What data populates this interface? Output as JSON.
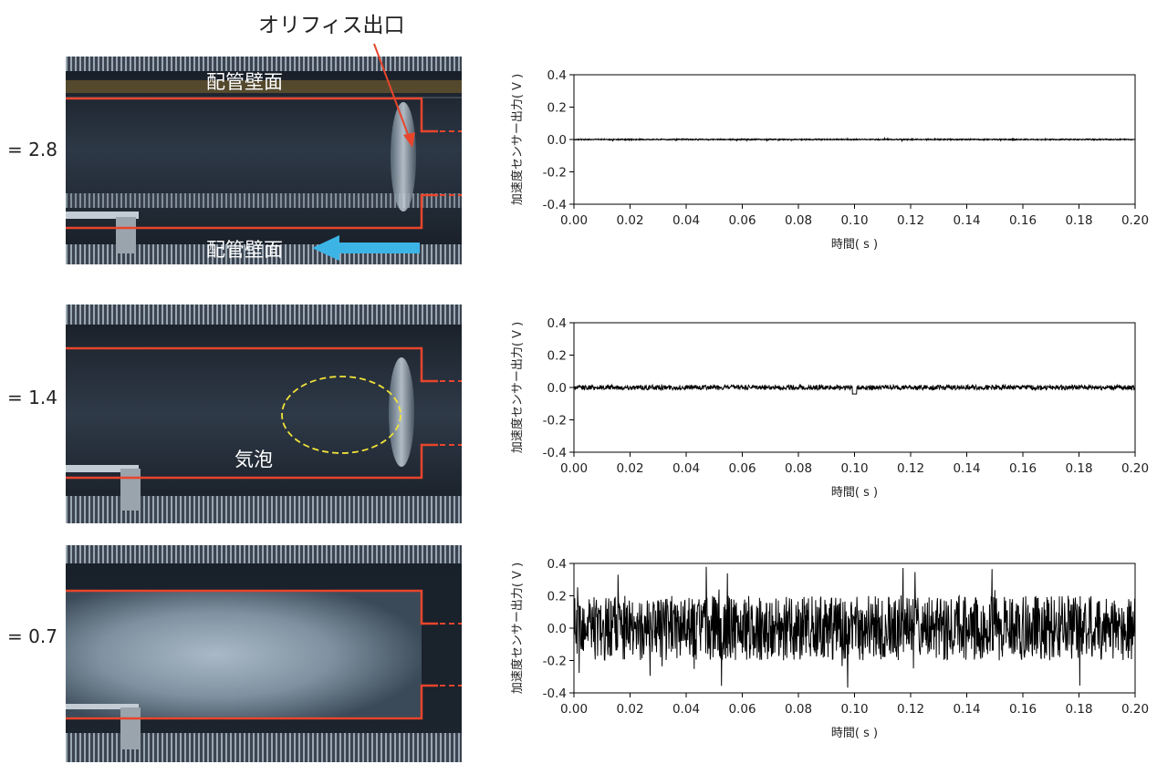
{
  "labels": {
    "orifice_exit": "オリフィス出口",
    "pipe_wall": "配管壁面",
    "bubble": "気泡"
  },
  "colors": {
    "outline": "#e8452c",
    "flow_arrow": "#3cb4e6",
    "bubble_outline": "#f2e23a",
    "trace": "#000000"
  },
  "panels": [
    {
      "sigma_label": "= 2.8",
      "photo_state": "clear"
    },
    {
      "sigma_label": "= 1.4",
      "photo_state": "bubble"
    },
    {
      "sigma_label": "= 0.7",
      "photo_state": "cloud"
    }
  ],
  "chart_data": [
    {
      "type": "line",
      "xlabel": "時間( s )",
      "ylabel": "加速度センサー出力( V )",
      "xlim": [
        0.0,
        0.2
      ],
      "ylim": [
        -0.4,
        0.4
      ],
      "xticks": [
        "0.00",
        "0.02",
        "0.04",
        "0.06",
        "0.08",
        "0.10",
        "0.12",
        "0.14",
        "0.16",
        "0.18",
        "0.20"
      ],
      "yticks": [
        "0.4",
        "0.2",
        "0.0",
        "-0.2",
        "-0.4"
      ],
      "noise_amplitude": 0.004,
      "series": [
        {
          "values_summary": "baseline ≈ 0.0 V with very small spikes"
        }
      ]
    },
    {
      "type": "line",
      "xlabel": "時間( s )",
      "ylabel": "加速度センサー出力( V )",
      "xlim": [
        0.0,
        0.2
      ],
      "ylim": [
        -0.4,
        0.4
      ],
      "xticks": [
        "0.00",
        "0.02",
        "0.04",
        "0.06",
        "0.08",
        "0.10",
        "0.12",
        "0.14",
        "0.16",
        "0.18",
        "0.20"
      ],
      "yticks": [
        "0.4",
        "0.2",
        "0.0",
        "-0.2",
        "-0.4"
      ],
      "noise_amplitude": 0.015,
      "series": [
        {
          "values_summary": "noise about 0.0 V, amplitude ≈ ±0.02 V, spike near t=0.10 s"
        }
      ]
    },
    {
      "type": "line",
      "xlabel": "時間( s )",
      "ylabel": "加速度センサー出力( V )",
      "xlim": [
        0.0,
        0.2
      ],
      "ylim": [
        -0.4,
        0.4
      ],
      "xticks": [
        "0.00",
        "0.02",
        "0.04",
        "0.06",
        "0.08",
        "0.10",
        "0.12",
        "0.14",
        "0.16",
        "0.18",
        "0.20"
      ],
      "yticks": [
        "0.4",
        "0.2",
        "0.0",
        "-0.2",
        "-0.4"
      ],
      "noise_amplitude": 0.2,
      "series": [
        {
          "values_summary": "strong random vibration about 0.0 V, peaks reaching ≈ ±0.4 V"
        }
      ]
    }
  ]
}
